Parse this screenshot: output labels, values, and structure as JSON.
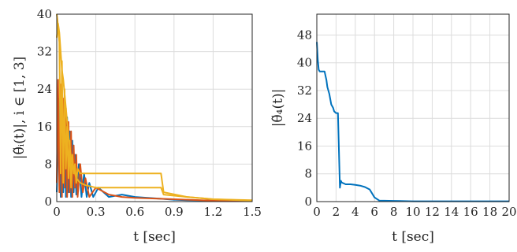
{
  "chart_data": [
    {
      "type": "line",
      "ylabel": "|θ̃ᵢ(t)|,  i ∈ [1, 3]",
      "xlabel": "t [sec]",
      "xlim": [
        0,
        1.5
      ],
      "ylim": [
        0,
        40
      ],
      "xticks": [
        "0",
        "0.3",
        "0.6",
        "0.9",
        "1.2",
        "1.5"
      ],
      "yticks": [
        "0",
        "8",
        "16",
        "24",
        "32",
        "40"
      ],
      "grid": true,
      "series": [
        {
          "color": "#0072bd",
          "x": [
            0,
            0.02,
            0.03,
            0.04,
            0.05,
            0.06,
            0.07,
            0.08,
            0.09,
            0.1,
            0.11,
            0.12,
            0.13,
            0.14,
            0.15,
            0.17,
            0.19,
            0.21,
            0.23,
            0.25,
            0.28,
            0.32,
            0.4,
            0.5,
            0.6,
            0.7,
            0.8,
            0.9,
            1.0,
            1.2,
            1.5
          ],
          "y": [
            2,
            22,
            1,
            24,
            2,
            20,
            1,
            18,
            2,
            15,
            1,
            13,
            2,
            10,
            1.5,
            8,
            1,
            6,
            1,
            4,
            1,
            3,
            1,
            1.5,
            1,
            0.8,
            0.6,
            0.4,
            0.3,
            0.2,
            0.1
          ]
        },
        {
          "color": "#d95319",
          "x": [
            0,
            0.01,
            0.02,
            0.03,
            0.04,
            0.05,
            0.06,
            0.07,
            0.08,
            0.09,
            0.1,
            0.11,
            0.12,
            0.13,
            0.14,
            0.15,
            0.16,
            0.18,
            0.2,
            0.22,
            0.25,
            0.3,
            0.4,
            0.5,
            0.6,
            0.8,
            1.0,
            1.2,
            1.5
          ],
          "y": [
            4,
            26,
            2,
            25,
            1,
            22,
            3,
            20,
            1,
            17,
            2,
            15,
            1,
            12,
            3,
            10,
            1,
            8,
            2,
            5,
            1,
            3,
            1.5,
            1,
            0.8,
            0.6,
            0.4,
            0.2,
            0.1
          ]
        },
        {
          "color": "#edb120",
          "x": [
            0,
            0.005,
            0.02,
            0.03,
            0.04,
            0.05,
            0.06,
            0.07,
            0.08,
            0.09,
            0.1,
            0.11,
            0.12,
            0.13,
            0.14,
            0.15,
            0.16,
            0.18,
            0.2,
            0.3,
            0.4,
            0.45,
            0.8,
            0.82,
            1.0,
            1.2,
            1.5
          ],
          "y": [
            40,
            39,
            34,
            6,
            30,
            4,
            24,
            7,
            16,
            5,
            13,
            3,
            10,
            6,
            8,
            4,
            7,
            6,
            6,
            6,
            6,
            6,
            6,
            2,
            1,
            0.5,
            0.3
          ]
        },
        {
          "color": "#edb120",
          "x": [
            0,
            0.01,
            0.02,
            0.04,
            0.05,
            0.07,
            0.09,
            0.11,
            0.13,
            0.15,
            0.18,
            0.22,
            0.3,
            0.45,
            0.8,
            0.82,
            1.0,
            1.2,
            1.5
          ],
          "y": [
            35,
            38,
            36,
            28,
            26,
            20,
            14,
            9,
            7,
            5,
            4,
            3.5,
            3,
            3,
            3,
            1.5,
            1,
            0.5,
            0.2
          ]
        }
      ]
    },
    {
      "type": "line",
      "ylabel": "|θ̃₄(t)|",
      "xlabel": "t [sec]",
      "xlim": [
        0,
        20
      ],
      "ylim": [
        0,
        54
      ],
      "xticks": [
        "0",
        "2",
        "4",
        "6",
        "8",
        "10",
        "12",
        "14",
        "16",
        "18",
        "20"
      ],
      "yticks": [
        "0",
        "8",
        "16",
        "24",
        "32",
        "40",
        "48"
      ],
      "grid": true,
      "series": [
        {
          "color": "#0072bd",
          "x": [
            0,
            0.1,
            0.2,
            0.3,
            0.5,
            0.8,
            1.0,
            1.1,
            1.3,
            1.5,
            1.7,
            1.8,
            2.0,
            2.2,
            2.4,
            2.5,
            2.6,
            3.0,
            3.5,
            4.0,
            4.5,
            5.0,
            5.5,
            6.0,
            6.5,
            8.0,
            10.0,
            14.0,
            20.0
          ],
          "y": [
            46,
            41,
            38,
            37.5,
            37.5,
            37.5,
            35,
            33,
            31,
            28,
            27,
            26,
            25.5,
            25.5,
            4,
            6,
            5.5,
            5,
            5,
            4.8,
            4.6,
            4.2,
            3.5,
            1.2,
            0.3,
            0.2,
            0.1,
            0.1,
            0.1
          ]
        }
      ]
    }
  ]
}
